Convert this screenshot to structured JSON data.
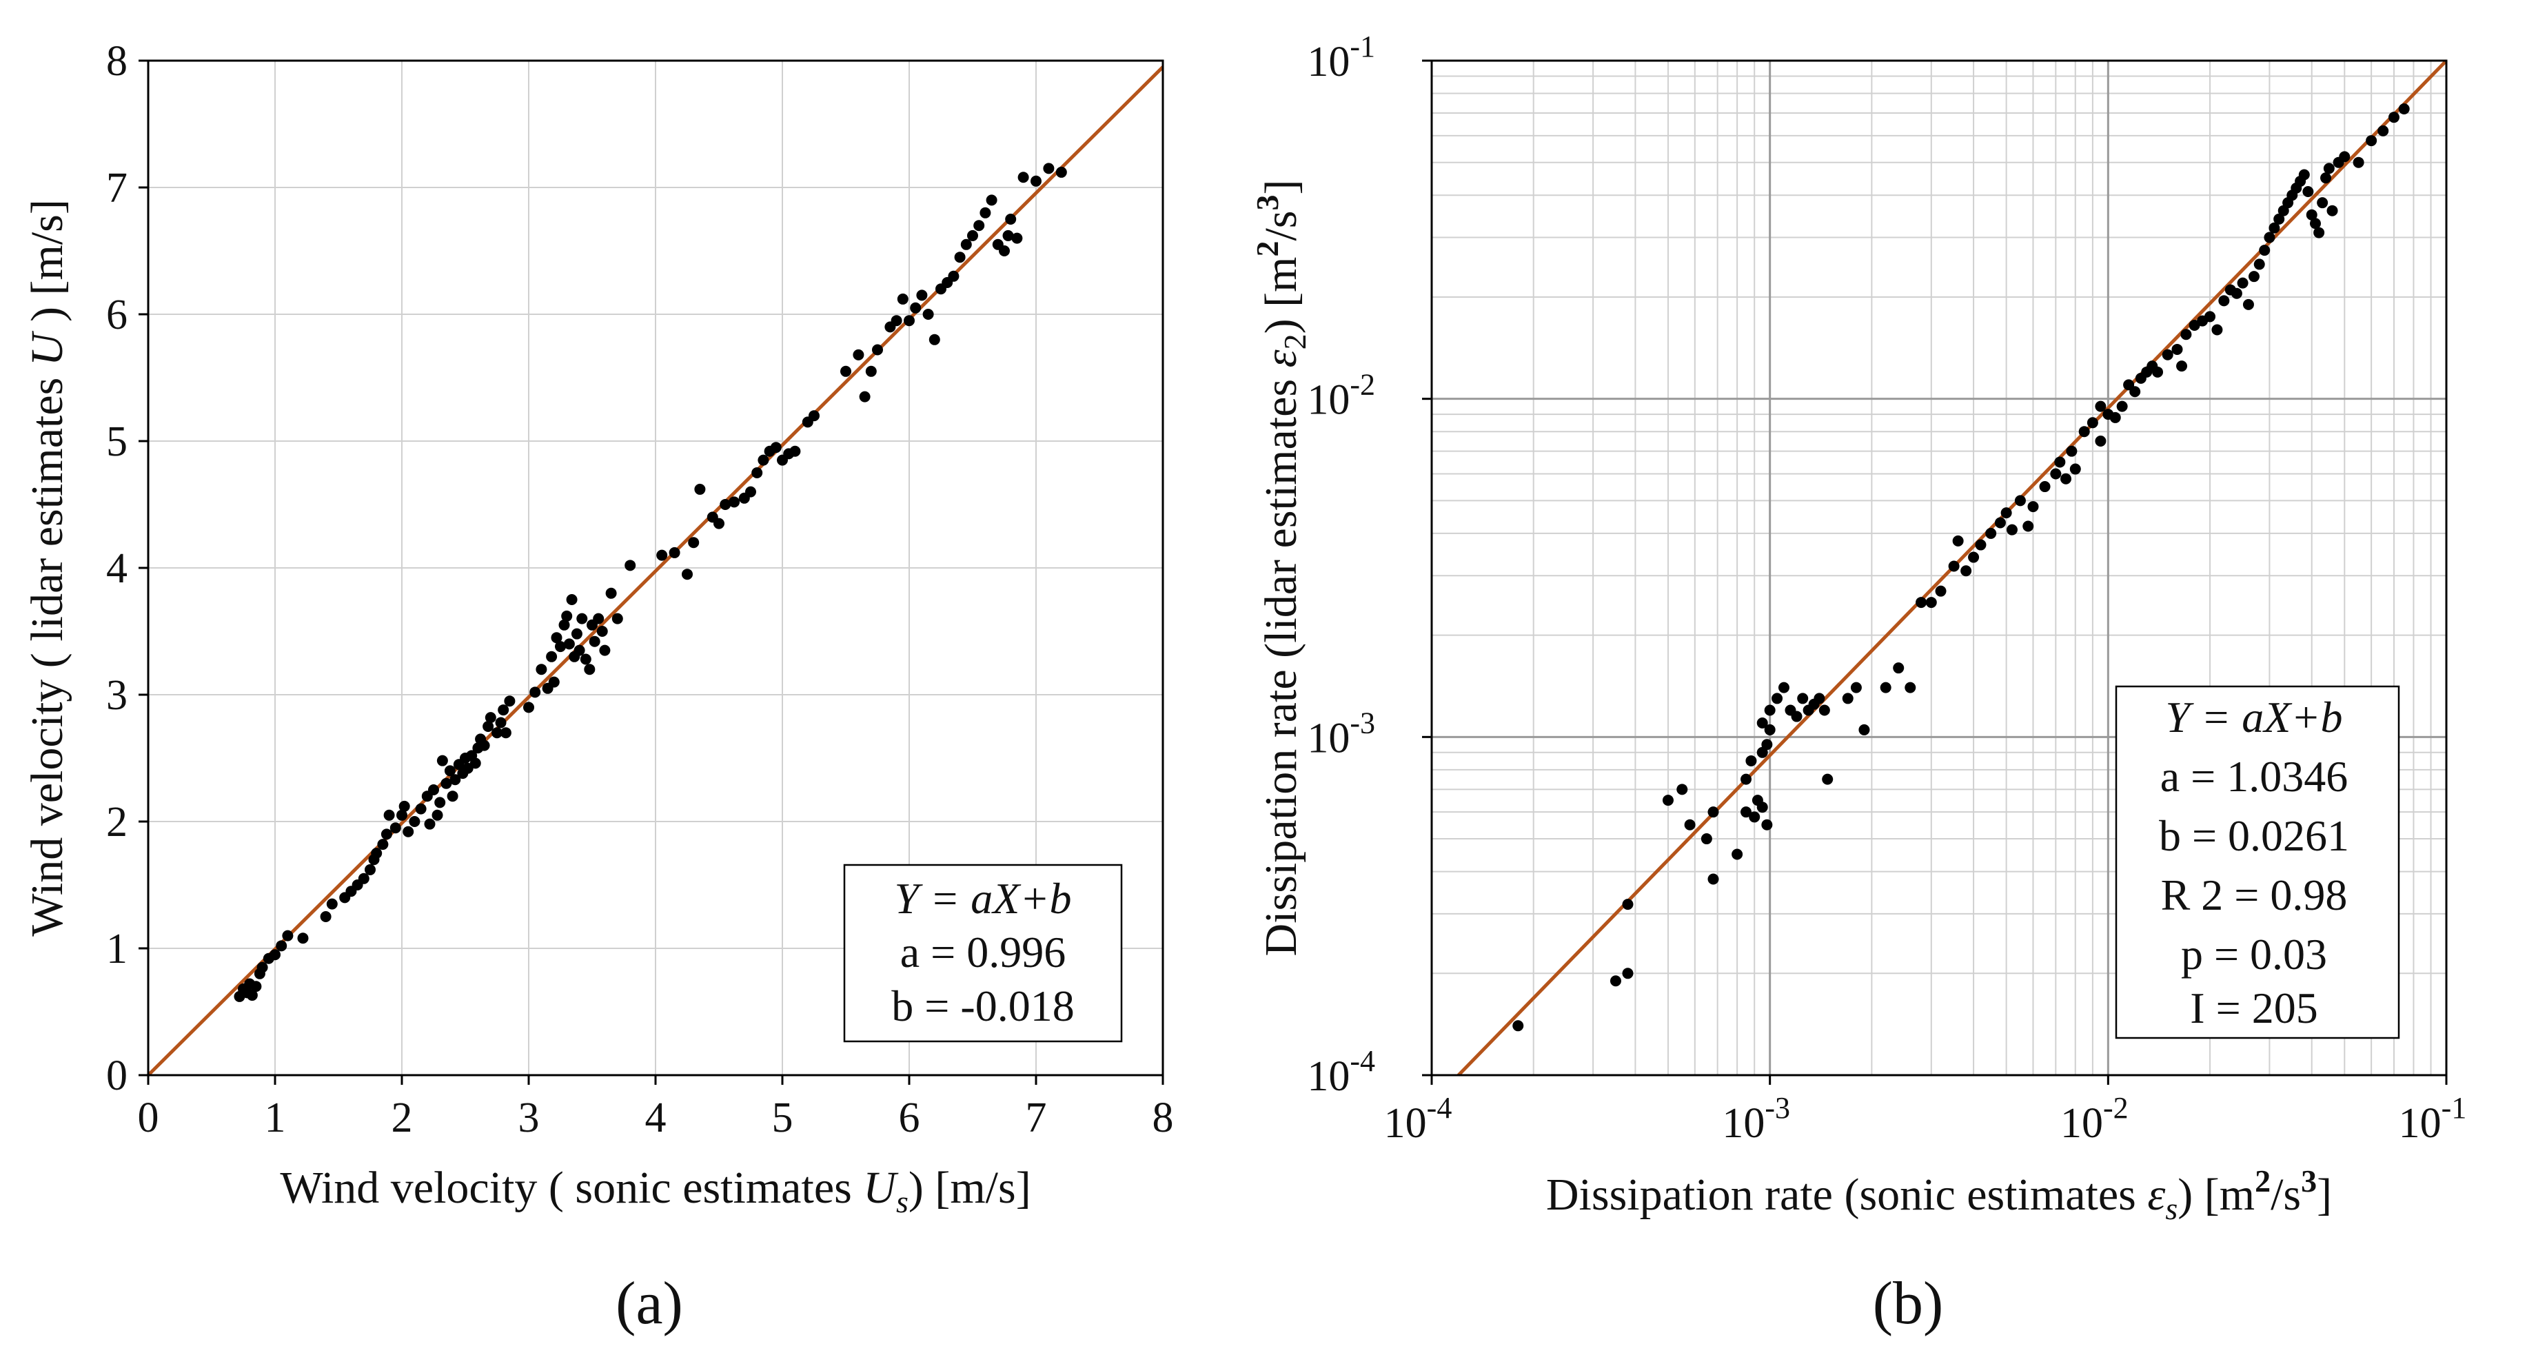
{
  "colors": {
    "fit_line": "#b5541a",
    "points": "#000000",
    "grid_major": "#9a9a9a",
    "grid_minor": "#d0d0d0",
    "axis": "#000000"
  },
  "chart_data": [
    {
      "panel_label": "(a)",
      "type": "scatter",
      "xlabel_parts": [
        "Wind velocity ( sonic estimates ",
        "U",
        "s",
        ") [m/s]"
      ],
      "ylabel_parts": [
        "Wind velocity ( lidar estimates ",
        "U",
        " ) [m/s]"
      ],
      "xlim": [
        0,
        8
      ],
      "ylim": [
        0,
        8
      ],
      "xticks": [
        0,
        1,
        2,
        3,
        4,
        5,
        6,
        7,
        8
      ],
      "yticks": [
        0,
        1,
        2,
        3,
        4,
        5,
        6,
        7,
        8
      ],
      "xtick_labels": [
        "0",
        "1",
        "2",
        "3",
        "4",
        "5",
        "6",
        "7",
        "8"
      ],
      "ytick_labels": [
        "0",
        "1",
        "2",
        "3",
        "4",
        "5",
        "6",
        "7",
        "8"
      ],
      "grid": true,
      "fit": {
        "a": 0.996,
        "b": -0.018,
        "x_range": [
          0,
          8
        ]
      },
      "legend_lines": [
        "Y = aX+b",
        "a = 0.996",
        "b = -0.018"
      ],
      "legend_position": "bottom-right",
      "points": [
        [
          0.72,
          0.62
        ],
        [
          0.75,
          0.68
        ],
        [
          0.78,
          0.65
        ],
        [
          0.8,
          0.72
        ],
        [
          0.82,
          0.63
        ],
        [
          0.85,
          0.7
        ],
        [
          0.88,
          0.8
        ],
        [
          0.9,
          0.85
        ],
        [
          0.95,
          0.92
        ],
        [
          1.0,
          0.95
        ],
        [
          1.05,
          1.02
        ],
        [
          1.1,
          1.1
        ],
        [
          1.22,
          1.08
        ],
        [
          1.4,
          1.25
        ],
        [
          1.45,
          1.35
        ],
        [
          1.55,
          1.4
        ],
        [
          1.6,
          1.45
        ],
        [
          1.65,
          1.5
        ],
        [
          1.7,
          1.55
        ],
        [
          1.75,
          1.62
        ],
        [
          1.78,
          1.7
        ],
        [
          1.8,
          1.75
        ],
        [
          1.85,
          1.82
        ],
        [
          1.88,
          1.9
        ],
        [
          1.9,
          2.05
        ],
        [
          1.95,
          1.95
        ],
        [
          2.0,
          2.05
        ],
        [
          2.02,
          2.12
        ],
        [
          2.05,
          1.92
        ],
        [
          2.1,
          2.0
        ],
        [
          2.15,
          2.1
        ],
        [
          2.2,
          2.2
        ],
        [
          2.22,
          1.98
        ],
        [
          2.25,
          2.25
        ],
        [
          2.28,
          2.05
        ],
        [
          2.3,
          2.15
        ],
        [
          2.32,
          2.48
        ],
        [
          2.35,
          2.3
        ],
        [
          2.38,
          2.4
        ],
        [
          2.4,
          2.2
        ],
        [
          2.42,
          2.33
        ],
        [
          2.45,
          2.45
        ],
        [
          2.48,
          2.38
        ],
        [
          2.5,
          2.5
        ],
        [
          2.52,
          2.42
        ],
        [
          2.55,
          2.52
        ],
        [
          2.58,
          2.46
        ],
        [
          2.6,
          2.58
        ],
        [
          2.62,
          2.65
        ],
        [
          2.65,
          2.6
        ],
        [
          2.68,
          2.75
        ],
        [
          2.7,
          2.82
        ],
        [
          2.75,
          2.7
        ],
        [
          2.78,
          2.78
        ],
        [
          2.8,
          2.88
        ],
        [
          2.82,
          2.7
        ],
        [
          2.85,
          2.95
        ],
        [
          3.0,
          2.9
        ],
        [
          3.05,
          3.02
        ],
        [
          3.1,
          3.2
        ],
        [
          3.15,
          3.05
        ],
        [
          3.18,
          3.3
        ],
        [
          3.2,
          3.1
        ],
        [
          3.22,
          3.45
        ],
        [
          3.25,
          3.38
        ],
        [
          3.28,
          3.55
        ],
        [
          3.3,
          3.62
        ],
        [
          3.32,
          3.4
        ],
        [
          3.34,
          3.75
        ],
        [
          3.36,
          3.3
        ],
        [
          3.38,
          3.48
        ],
        [
          3.4,
          3.35
        ],
        [
          3.42,
          3.6
        ],
        [
          3.45,
          3.28
        ],
        [
          3.48,
          3.2
        ],
        [
          3.5,
          3.55
        ],
        [
          3.52,
          3.42
        ],
        [
          3.55,
          3.6
        ],
        [
          3.58,
          3.5
        ],
        [
          3.6,
          3.35
        ],
        [
          3.65,
          3.8
        ],
        [
          3.7,
          3.6
        ],
        [
          3.8,
          4.02
        ],
        [
          4.05,
          4.1
        ],
        [
          4.15,
          4.12
        ],
        [
          4.25,
          3.95
        ],
        [
          4.3,
          4.2
        ],
        [
          4.35,
          4.62
        ],
        [
          4.45,
          4.4
        ],
        [
          4.5,
          4.35
        ],
        [
          4.55,
          4.5
        ],
        [
          4.62,
          4.52
        ],
        [
          4.7,
          4.55
        ],
        [
          4.75,
          4.6
        ],
        [
          4.8,
          4.75
        ],
        [
          4.85,
          4.85
        ],
        [
          4.9,
          4.92
        ],
        [
          4.95,
          4.95
        ],
        [
          5.0,
          4.85
        ],
        [
          5.05,
          4.9
        ],
        [
          5.1,
          4.92
        ],
        [
          5.2,
          5.15
        ],
        [
          5.25,
          5.2
        ],
        [
          5.5,
          5.55
        ],
        [
          5.6,
          5.68
        ],
        [
          5.65,
          5.35
        ],
        [
          5.7,
          5.55
        ],
        [
          5.75,
          5.72
        ],
        [
          5.85,
          5.9
        ],
        [
          5.9,
          5.95
        ],
        [
          5.95,
          6.12
        ],
        [
          6.0,
          5.95
        ],
        [
          6.05,
          6.05
        ],
        [
          6.1,
          6.15
        ],
        [
          6.15,
          6.0
        ],
        [
          6.2,
          5.8
        ],
        [
          6.25,
          6.2
        ],
        [
          6.3,
          6.25
        ],
        [
          6.35,
          6.3
        ],
        [
          6.4,
          6.45
        ],
        [
          6.45,
          6.55
        ],
        [
          6.5,
          6.62
        ],
        [
          6.55,
          6.7
        ],
        [
          6.6,
          6.8
        ],
        [
          6.65,
          6.9
        ],
        [
          6.7,
          6.55
        ],
        [
          6.75,
          6.5
        ],
        [
          6.78,
          6.62
        ],
        [
          6.8,
          6.75
        ],
        [
          6.85,
          6.6
        ],
        [
          6.9,
          7.08
        ],
        [
          7.0,
          7.05
        ],
        [
          7.1,
          7.15
        ],
        [
          7.2,
          7.12
        ]
      ]
    },
    {
      "panel_label": "(b)",
      "type": "scatter",
      "xscale": "log",
      "yscale": "log",
      "xlabel_parts": [
        "Dissipation rate (sonic estimates ",
        "ε",
        "s",
        ") [m",
        "2",
        "/s",
        "3",
        "]"
      ],
      "ylabel_parts": [
        "Dissipation rate (lidar estimates ",
        "ε",
        "2",
        ") [m",
        "2",
        "/s",
        "3",
        "]"
      ],
      "xlim": [
        0.0001,
        0.1
      ],
      "ylim": [
        0.0001,
        0.1
      ],
      "decades": [
        -4,
        -3,
        -2,
        -1
      ],
      "tick_base": "10",
      "tick_exponents": [
        "-4",
        "-3",
        "-2",
        "-1"
      ],
      "grid": true,
      "fit": {
        "x_range": [
          0.00012,
          0.1
        ]
      },
      "legend_lines": [
        "Y = aX+b",
        "a = 1.0346",
        "b = 0.0261",
        "R 2 = 0.98",
        "p = 0.03",
        "I = 205"
      ],
      "legend_position": "bottom-right",
      "points": [
        [
          0.00018,
          0.00014
        ],
        [
          0.00035,
          0.00019
        ],
        [
          0.00038,
          0.0002
        ],
        [
          0.00038,
          0.00032
        ],
        [
          0.0005,
          0.00065
        ],
        [
          0.00055,
          0.0007
        ],
        [
          0.00058,
          0.00055
        ],
        [
          0.00065,
          0.0005
        ],
        [
          0.00068,
          0.00038
        ],
        [
          0.00068,
          0.0006
        ],
        [
          0.0008,
          0.00045
        ],
        [
          0.00085,
          0.0006
        ],
        [
          0.00085,
          0.00075
        ],
        [
          0.00088,
          0.00085
        ],
        [
          0.0009,
          0.00058
        ],
        [
          0.00092,
          0.00065
        ],
        [
          0.00095,
          0.00062
        ],
        [
          0.00098,
          0.00055
        ],
        [
          0.00095,
          0.0009
        ],
        [
          0.00095,
          0.0011
        ],
        [
          0.00098,
          0.00095
        ],
        [
          0.001,
          0.00105
        ],
        [
          0.001,
          0.0012
        ],
        [
          0.00105,
          0.0013
        ],
        [
          0.0011,
          0.0014
        ],
        [
          0.00115,
          0.0012
        ],
        [
          0.0012,
          0.00115
        ],
        [
          0.00125,
          0.0013
        ],
        [
          0.0013,
          0.0012
        ],
        [
          0.00135,
          0.00125
        ],
        [
          0.0014,
          0.0013
        ],
        [
          0.00145,
          0.0012
        ],
        [
          0.00148,
          0.00075
        ],
        [
          0.0017,
          0.0013
        ],
        [
          0.0018,
          0.0014
        ],
        [
          0.0019,
          0.00105
        ],
        [
          0.0022,
          0.0014
        ],
        [
          0.0024,
          0.0016
        ],
        [
          0.0026,
          0.0014
        ],
        [
          0.0028,
          0.0025
        ],
        [
          0.003,
          0.0025
        ],
        [
          0.0032,
          0.0027
        ],
        [
          0.0035,
          0.0032
        ],
        [
          0.0036,
          0.0038
        ],
        [
          0.0038,
          0.0031
        ],
        [
          0.004,
          0.0034
        ],
        [
          0.0042,
          0.0037
        ],
        [
          0.0045,
          0.004
        ],
        [
          0.0048,
          0.0043
        ],
        [
          0.005,
          0.0046
        ],
        [
          0.0052,
          0.0041
        ],
        [
          0.0055,
          0.005
        ],
        [
          0.0058,
          0.0042
        ],
        [
          0.006,
          0.0048
        ],
        [
          0.0065,
          0.0055
        ],
        [
          0.007,
          0.006
        ],
        [
          0.0072,
          0.0065
        ],
        [
          0.0075,
          0.0058
        ],
        [
          0.0078,
          0.007
        ],
        [
          0.008,
          0.0062
        ],
        [
          0.0085,
          0.008
        ],
        [
          0.009,
          0.0085
        ],
        [
          0.0095,
          0.0075
        ],
        [
          0.0095,
          0.0095
        ],
        [
          0.01,
          0.009
        ],
        [
          0.0105,
          0.0088
        ],
        [
          0.011,
          0.0095
        ],
        [
          0.0115,
          0.011
        ],
        [
          0.012,
          0.0105
        ],
        [
          0.0125,
          0.0115
        ],
        [
          0.013,
          0.012
        ],
        [
          0.0135,
          0.0125
        ],
        [
          0.014,
          0.012
        ],
        [
          0.015,
          0.0135
        ],
        [
          0.016,
          0.014
        ],
        [
          0.0165,
          0.0125
        ],
        [
          0.017,
          0.0155
        ],
        [
          0.018,
          0.0165
        ],
        [
          0.019,
          0.017
        ],
        [
          0.02,
          0.0175
        ],
        [
          0.021,
          0.016
        ],
        [
          0.022,
          0.0195
        ],
        [
          0.023,
          0.021
        ],
        [
          0.024,
          0.0205
        ],
        [
          0.025,
          0.022
        ],
        [
          0.026,
          0.019
        ],
        [
          0.027,
          0.023
        ],
        [
          0.028,
          0.025
        ],
        [
          0.029,
          0.0275
        ],
        [
          0.03,
          0.03
        ],
        [
          0.031,
          0.032
        ],
        [
          0.032,
          0.034
        ],
        [
          0.033,
          0.036
        ],
        [
          0.034,
          0.038
        ],
        [
          0.035,
          0.04
        ],
        [
          0.036,
          0.042
        ],
        [
          0.037,
          0.044
        ],
        [
          0.038,
          0.046
        ],
        [
          0.039,
          0.041
        ],
        [
          0.04,
          0.035
        ],
        [
          0.041,
          0.033
        ],
        [
          0.042,
          0.031
        ],
        [
          0.043,
          0.038
        ],
        [
          0.044,
          0.045
        ],
        [
          0.045,
          0.048
        ],
        [
          0.046,
          0.036
        ],
        [
          0.048,
          0.05
        ],
        [
          0.05,
          0.052
        ],
        [
          0.055,
          0.05
        ],
        [
          0.06,
          0.058
        ],
        [
          0.065,
          0.062
        ],
        [
          0.07,
          0.068
        ],
        [
          0.075,
          0.072
        ]
      ]
    }
  ]
}
